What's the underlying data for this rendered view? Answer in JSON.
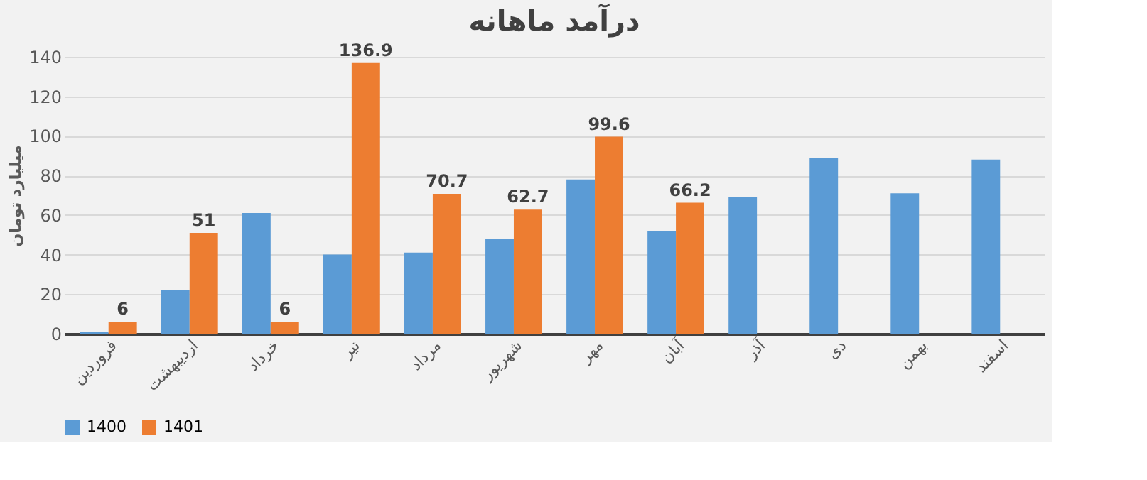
{
  "chart_data": {
    "type": "bar",
    "title": "درآمد ماهانه",
    "ylabel": "میلیارد تومان",
    "categories": [
      "فروردین",
      "اردیبهشت",
      "خرداد",
      "تیر",
      "مرداد",
      "شهریور",
      "مهر",
      "آبان",
      "آذر",
      "دی",
      "بهمن",
      "اسفند"
    ],
    "series": [
      {
        "name": "1400",
        "color": "#5b9bd5",
        "values": [
          1,
          22,
          61,
          40,
          41,
          48,
          78,
          52,
          69,
          89,
          71,
          88
        ]
      },
      {
        "name": "1401",
        "color": "#ed7d31",
        "values": [
          6,
          51,
          6,
          136.9,
          70.7,
          62.7,
          99.6,
          66.2,
          null,
          null,
          null,
          null
        ],
        "value_labels": [
          "6",
          "51",
          "6",
          "136.9",
          "70.7",
          "62.7",
          "99.6",
          "66.2",
          null,
          null,
          null,
          null
        ]
      }
    ],
    "ylim": [
      0,
      140
    ],
    "yticks": [
      0,
      20,
      40,
      60,
      80,
      100,
      120,
      140
    ],
    "grid": "y",
    "legend": "bottom"
  }
}
